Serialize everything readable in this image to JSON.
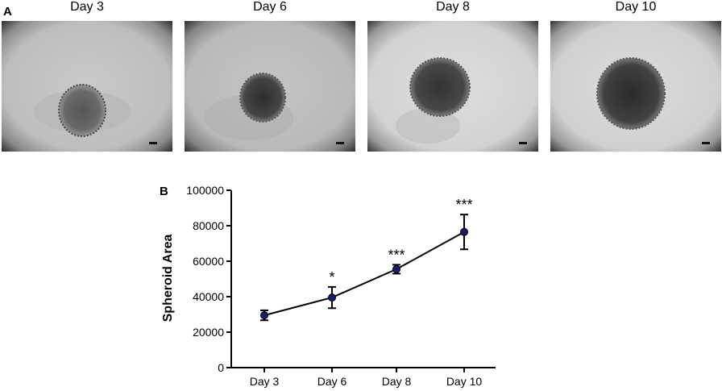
{
  "panel_a": {
    "letter": "A",
    "images": [
      {
        "title": "Day 3"
      },
      {
        "title": "Day 6"
      },
      {
        "title": "Day 8"
      },
      {
        "title": "Day 10"
      }
    ]
  },
  "panel_b": {
    "letter": "B"
  },
  "chart_data": {
    "type": "line",
    "categories": [
      "Day 3",
      "Day 6",
      "Day 8",
      "Day 10"
    ],
    "series": [
      {
        "values": [
          29500,
          39500,
          55500,
          76500
        ],
        "errors": [
          2800,
          6000,
          2500,
          9800
        ],
        "significance": [
          "",
          "*",
          "***",
          "***"
        ]
      }
    ],
    "xlabel": "",
    "ylabel": "Spheroid Area",
    "ylim": [
      0,
      100000
    ],
    "yticks": [
      0,
      20000,
      40000,
      60000,
      80000,
      100000
    ],
    "marker_color": "#1a1a6e",
    "grid": false
  }
}
